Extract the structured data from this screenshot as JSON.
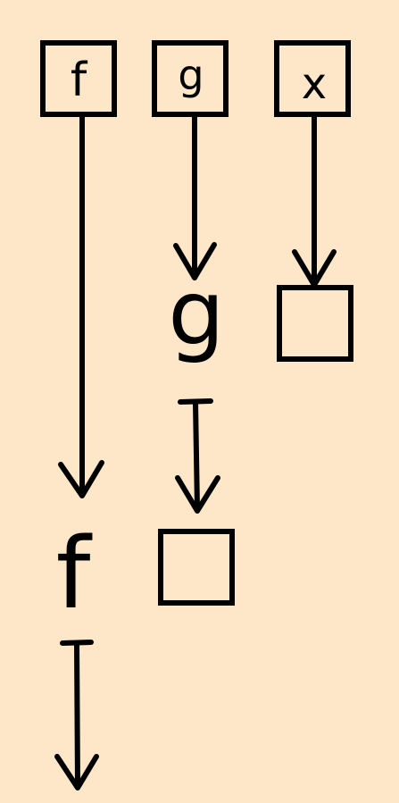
{
  "diagram": {
    "background_color": "#FEE6C8",
    "ink_color": "#000000",
    "top_row": {
      "f_label": "f",
      "g_label": "g",
      "x_label": "x"
    },
    "column_f": {
      "applied_label": "f"
    },
    "column_g": {
      "applied_label": "g"
    }
  }
}
